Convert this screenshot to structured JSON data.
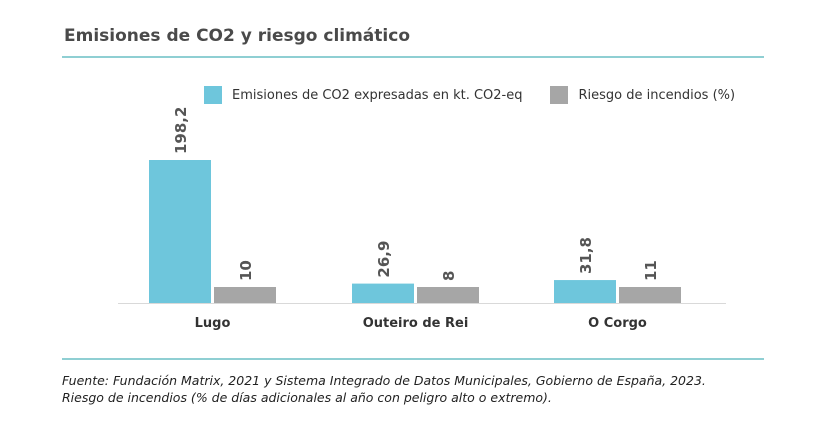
{
  "title": "Emisiones de CO2 y riesgo climático",
  "colors": {
    "co2": "#6ec6dc",
    "risk": "#a6a6a6",
    "rule": "#8fcfd3"
  },
  "chart_data": {
    "type": "bar",
    "categories": [
      "Lugo",
      "Outeiro de Rei",
      "O Corgo"
    ],
    "series": [
      {
        "name": "Emisiones de CO2 expresadas en kt. CO2-eq",
        "values": [
          198.2,
          26.9,
          31.8
        ],
        "labels": [
          "198,2",
          "26,9",
          "31,8"
        ]
      },
      {
        "name": "Riesgo de incendios (%)",
        "values": [
          10,
          8,
          11
        ],
        "labels": [
          "10",
          "8",
          "11"
        ]
      }
    ],
    "legend_position": "top",
    "grid": false
  },
  "footer": {
    "line1": "Fuente: Fundación Matrix, 2021 y Sistema Integrado de Datos Municipales, Gobierno de España, 2023.",
    "line2": "Riesgo de incendios (% de días adicionales al año con peligro alto o extremo)."
  }
}
